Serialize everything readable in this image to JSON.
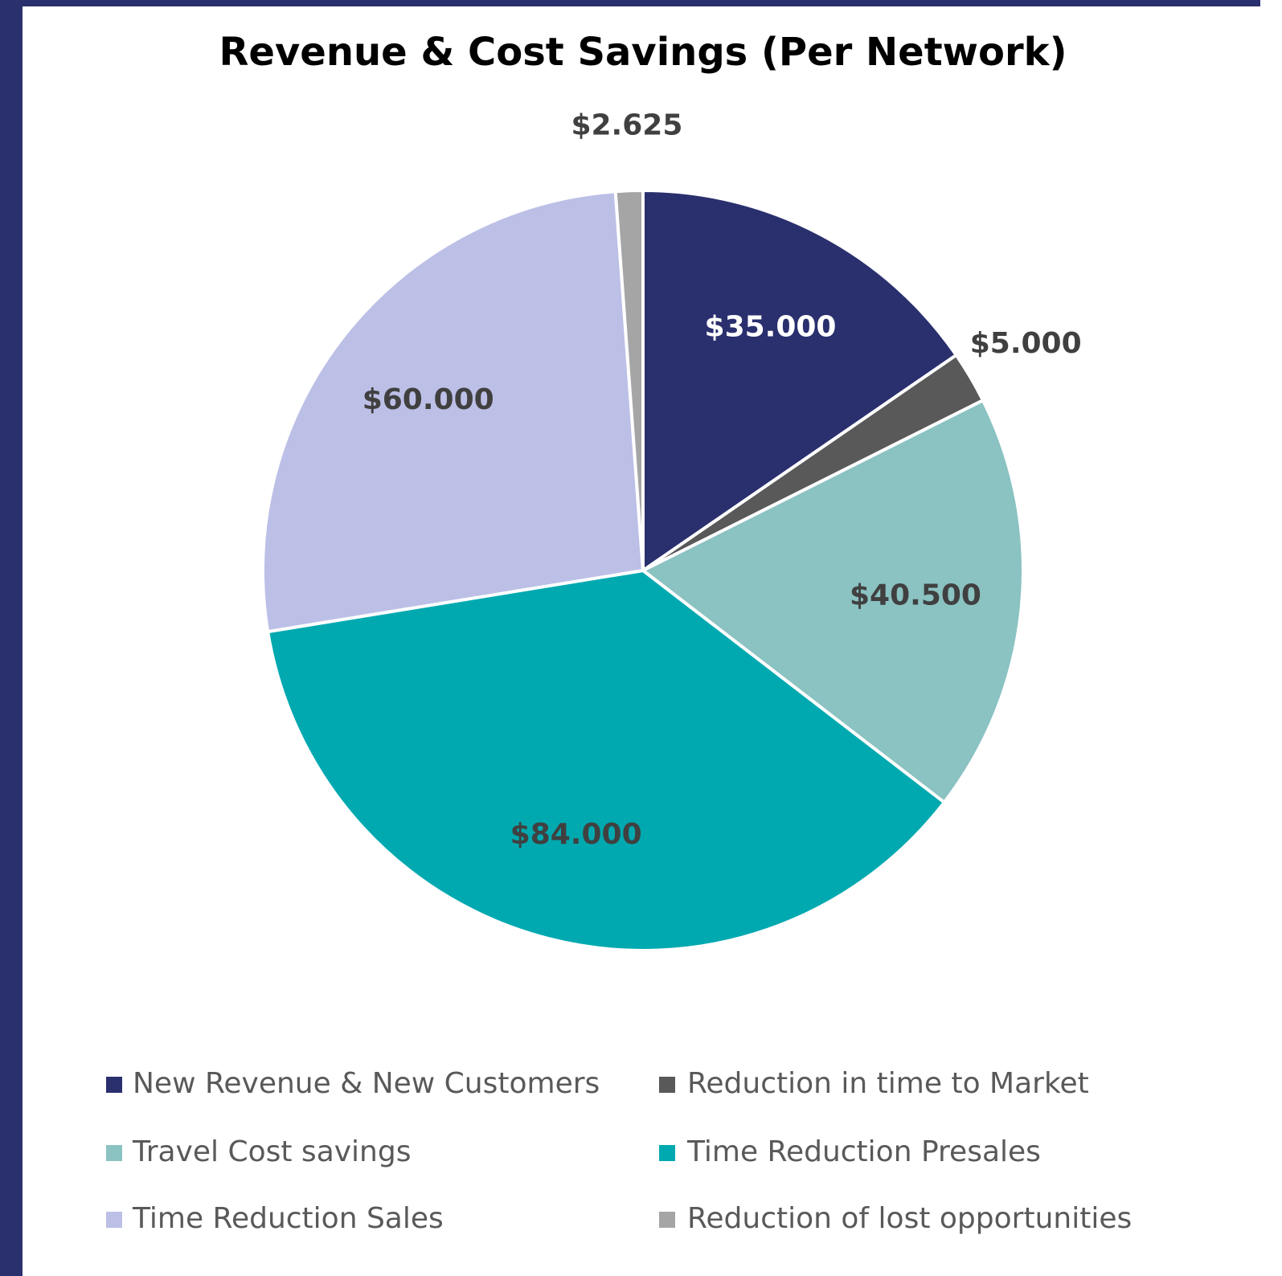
{
  "chart_data": {
    "type": "pie",
    "title": "Revenue & Cost Savings (Per Network)",
    "categories": [
      "New Revenue & New Customers",
      "Reduction in time to Market",
      "Travel Cost savings",
      "Time Reduction Presales",
      "Time Reduction Sales",
      "Reduction of lost opportunities"
    ],
    "values": [
      35000,
      5000,
      40500,
      84000,
      60000,
      2625
    ],
    "value_labels": [
      "$35.000",
      "$5.000",
      "$40.500",
      "$84.000",
      "$60.000",
      "$2.625"
    ],
    "colors": [
      "#2a2f6e",
      "#595959",
      "#8bc2c2",
      "#00a9b0",
      "#bcbfe6",
      "#a5a5a5"
    ],
    "legend": "bottom"
  }
}
